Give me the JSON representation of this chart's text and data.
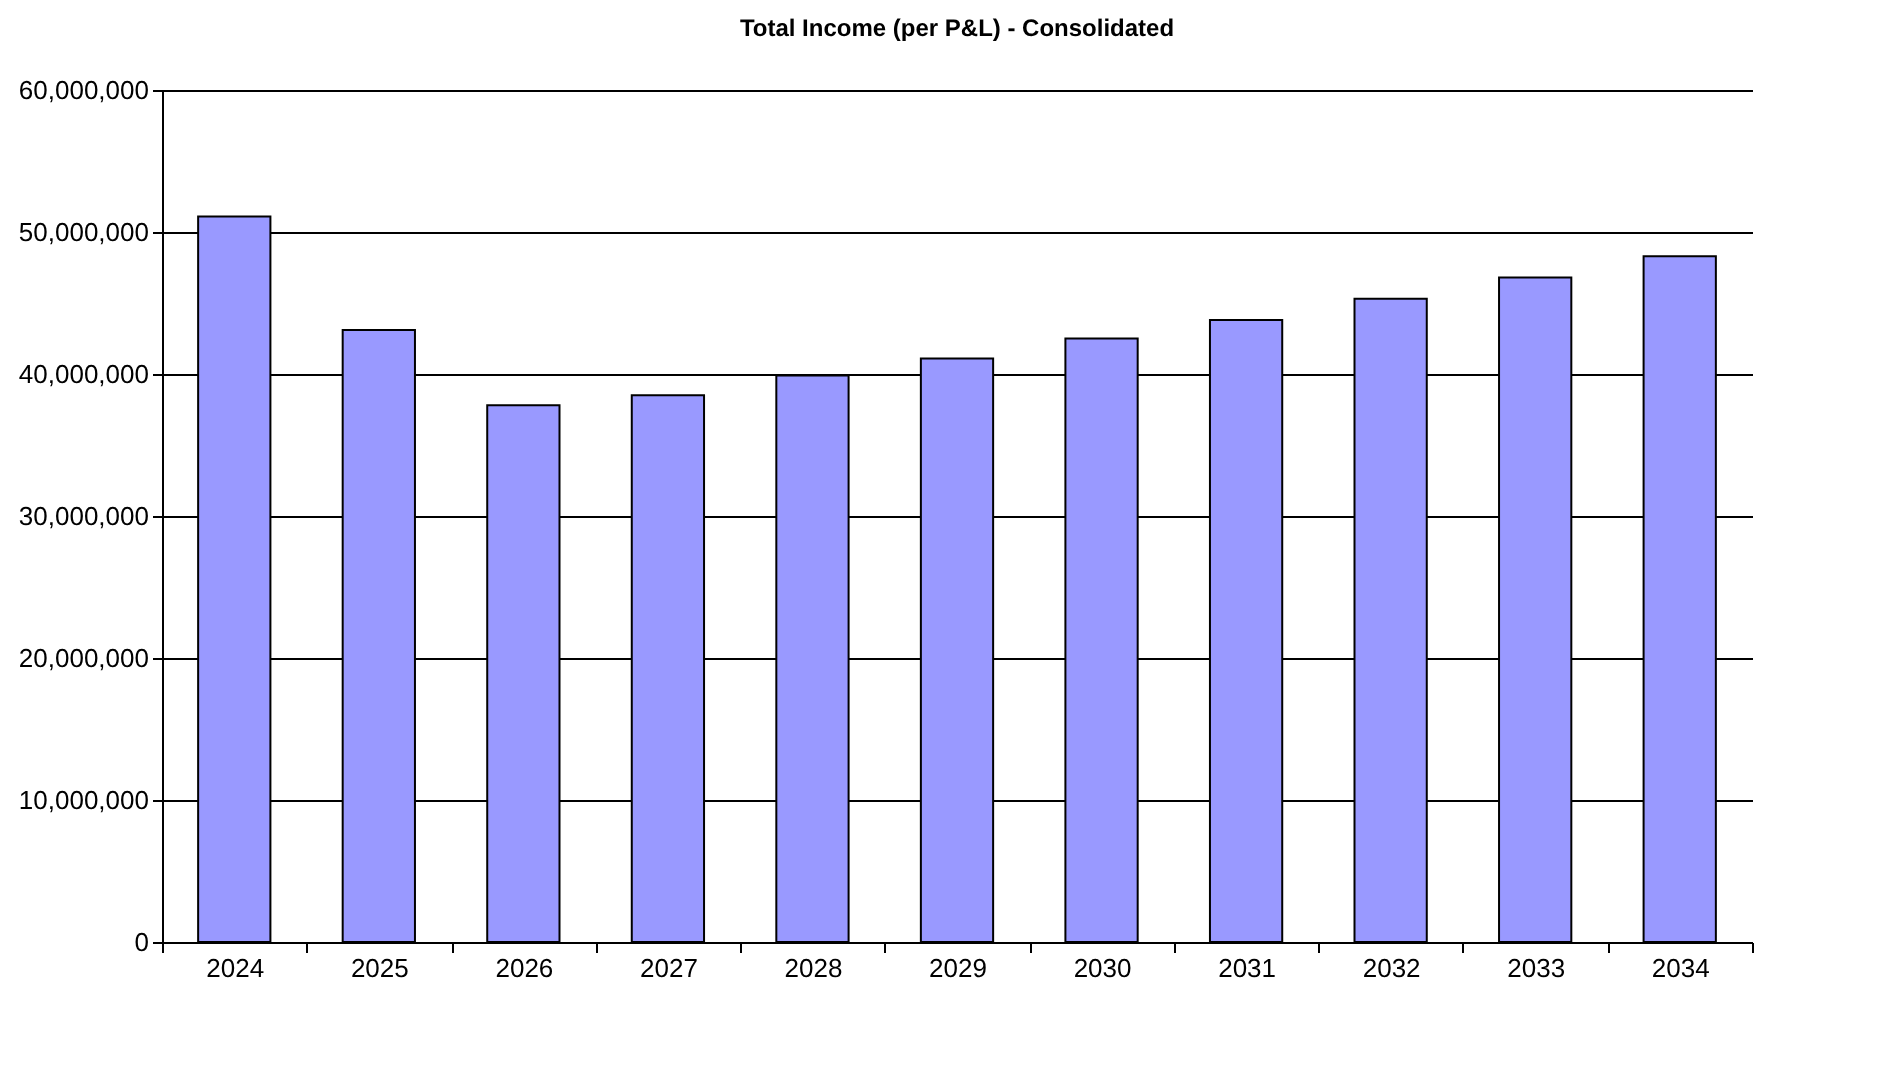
{
  "chart_data": {
    "type": "bar",
    "title": "Total Income (per P&L) - Consolidated",
    "categories": [
      "2024",
      "2025",
      "2026",
      "2027",
      "2028",
      "2029",
      "2030",
      "2031",
      "2032",
      "2033",
      "2034"
    ],
    "values": [
      51100000,
      43100000,
      37800000,
      38500000,
      39900000,
      41100000,
      42500000,
      43800000,
      45300000,
      46800000,
      48300000
    ],
    "color": "#9999ff",
    "ylim": [
      0,
      60000000
    ],
    "yticks": [
      0,
      {
        "value": 10000000,
        "label": "10,000,000"
      },
      {
        "value": 20000000,
        "label": "20,000,000"
      },
      {
        "value": 30000000,
        "label": "30,000,000"
      },
      {
        "value": 40000000,
        "label": "40,000,000"
      },
      {
        "value": 50000000,
        "label": "50,000,000"
      },
      {
        "value": 60000000,
        "label": "60,000,000"
      }
    ],
    "grid": "y"
  }
}
